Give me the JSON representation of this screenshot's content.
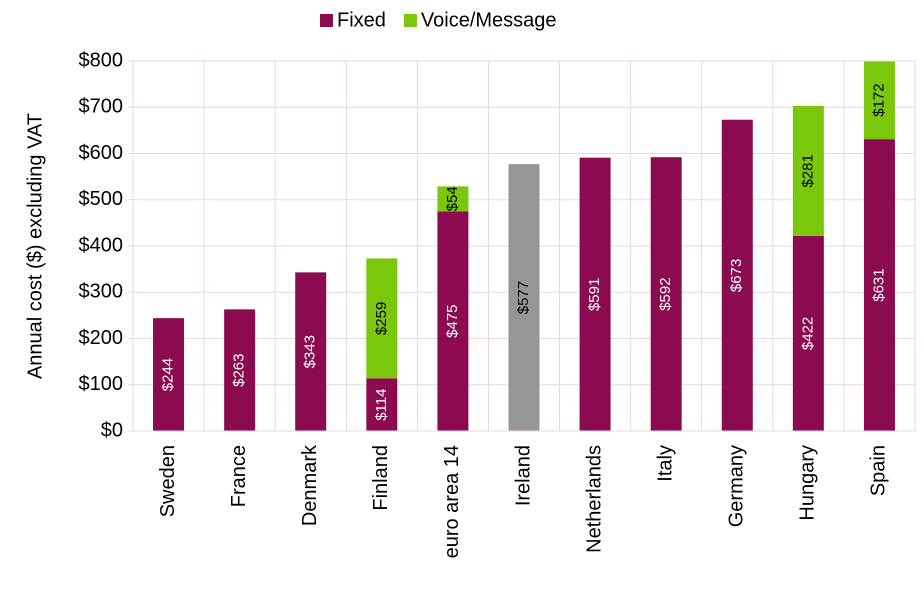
{
  "chart_data": {
    "type": "stacked_bar",
    "y_label": "Annual cost ($) excluding VAT",
    "categories": [
      "Sweden",
      "France",
      "Denmark",
      "Finland",
      "euro area 14",
      "Ireland",
      "Netherlands",
      "Italy",
      "Germany",
      "Hungary",
      "Spain"
    ],
    "series": [
      {
        "name": "Fixed",
        "color": "#8b0a50",
        "colors": [
          "#8b0a50",
          "#8b0a50",
          "#8b0a50",
          "#8b0a50",
          "#8b0a50",
          "#969696",
          "#8b0a50",
          "#8b0a50",
          "#8b0a50",
          "#8b0a50",
          "#8b0a50"
        ],
        "values": [
          244,
          263,
          343,
          114,
          475,
          577,
          591,
          592,
          673,
          422,
          631
        ],
        "value_labels": [
          "$244",
          "$263",
          "$343",
          "$114",
          "$475",
          "$577",
          "$591",
          "$592",
          "$673",
          "$422",
          "$631"
        ]
      },
      {
        "name": "Voice/Message",
        "color": "#7ac70c",
        "values": [
          null,
          null,
          null,
          259,
          54,
          null,
          null,
          null,
          null,
          281,
          172
        ],
        "value_labels": [
          null,
          null,
          null,
          "$259",
          "$54",
          null,
          null,
          null,
          null,
          "$281",
          "$172"
        ]
      }
    ],
    "ylim": [
      0,
      800
    ],
    "yticks": [
      {
        "value": 0,
        "label": "$0"
      },
      {
        "value": 100,
        "label": "$100"
      },
      {
        "value": 200,
        "label": "$200"
      },
      {
        "value": 300,
        "label": "$300"
      },
      {
        "value": 400,
        "label": "$400"
      },
      {
        "value": 500,
        "label": "$500"
      },
      {
        "value": 600,
        "label": "$600"
      },
      {
        "value": 700,
        "label": "$700"
      },
      {
        "value": 800,
        "label": "$800"
      }
    ],
    "grid": true,
    "legend": "top"
  }
}
